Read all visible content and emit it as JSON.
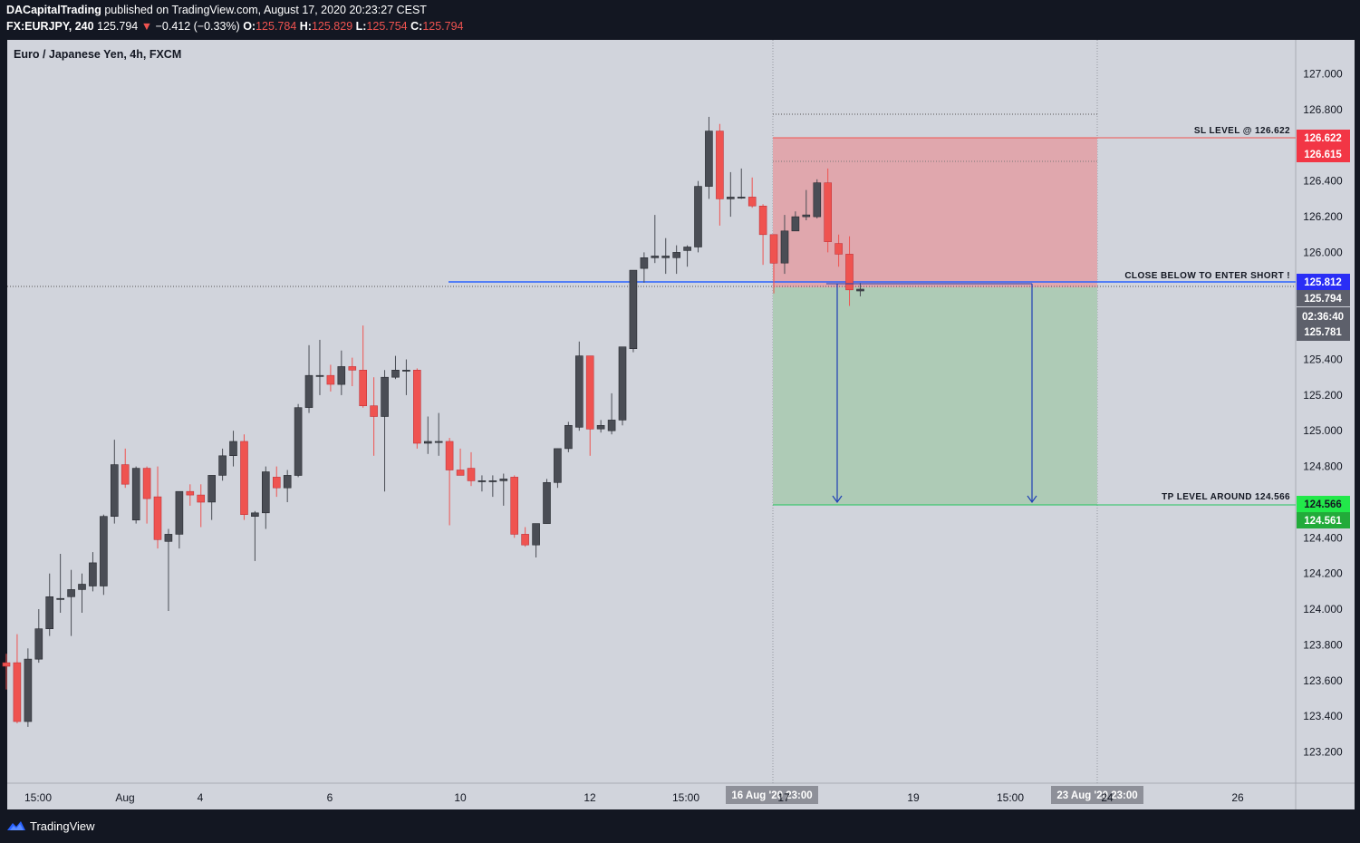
{
  "header": {
    "publisher": "DACapitalTrading",
    "published_text": "published on TradingView.com, August 17, 2020 20:23:27 CEST",
    "symbol": "FX:EURJPY, 240",
    "last": "125.794",
    "change_arrow": "▼",
    "change": "−0.412 (−0.33%)",
    "o_label": "O:",
    "o_value": "125.784",
    "h_label": "H:",
    "h_value": "125.829",
    "l_label": "L:",
    "l_value": "125.754",
    "c_label": "C:",
    "c_value": "125.794"
  },
  "symbol_label": "Euro / Japanese Yen, 4h, FXCM",
  "footer": {
    "brand": "TradingView",
    "logo_icon": "tradingview-logo-icon"
  },
  "colors": {
    "bg": "#d1d4dc",
    "up": "#4a4d55",
    "down": "#ef5350",
    "stop_zone": "#e0a7ad",
    "target_zone": "#aecbb6",
    "entry_line": "#2962ff",
    "arrow": "#1e3fb5"
  },
  "annotations": {
    "sl": "SL LEVEL @ 126.622",
    "entry": "CLOSE BELOW TO ENTER SHORT !",
    "tp": "TP LEVEL AROUND 124.566"
  },
  "price_badges": {
    "sl_top": "126.622",
    "sl_bottom": "126.615",
    "entry": "125.812",
    "last": "125.794",
    "countdown": "02:36:40",
    "last2": "125.781",
    "tp_top": "124.566",
    "tp_bottom": "124.561"
  },
  "time_axis": {
    "ticks": [
      "15:00",
      "Aug",
      "4",
      "6",
      "10",
      "12",
      "15:00",
      "19",
      "15:00",
      "26"
    ],
    "range_badges": [
      "16 Aug '20 23:00",
      "23 Aug '20 23:00"
    ],
    "overlap_ticks": [
      "17",
      "24"
    ]
  },
  "chart_data": {
    "type": "candlestick",
    "symbol": "EURJPY",
    "timeframe": "4h",
    "y_ticks": [
      127.0,
      126.8,
      126.4,
      126.2,
      126.0,
      125.4,
      125.2,
      125.0,
      124.8,
      124.4,
      124.2,
      124.0,
      123.8,
      123.6,
      123.4,
      123.2
    ],
    "ylim": [
      123.0,
      127.2
    ],
    "candles": [
      {
        "o": 123.7,
        "h": 123.75,
        "l": 123.55,
        "c": 123.68
      },
      {
        "o": 123.7,
        "h": 123.86,
        "l": 123.36,
        "c": 123.37
      },
      {
        "o": 123.37,
        "h": 123.78,
        "l": 123.34,
        "c": 123.72
      },
      {
        "o": 123.72,
        "h": 124.0,
        "l": 123.7,
        "c": 123.89
      },
      {
        "o": 123.89,
        "h": 124.2,
        "l": 123.85,
        "c": 124.07
      },
      {
        "o": 124.06,
        "h": 124.31,
        "l": 123.98,
        "c": 124.06
      },
      {
        "o": 124.07,
        "h": 124.22,
        "l": 123.85,
        "c": 124.11
      },
      {
        "o": 124.11,
        "h": 124.2,
        "l": 123.98,
        "c": 124.14
      },
      {
        "o": 124.13,
        "h": 124.32,
        "l": 124.1,
        "c": 124.26
      },
      {
        "o": 124.13,
        "h": 124.53,
        "l": 124.08,
        "c": 124.52
      },
      {
        "o": 124.52,
        "h": 124.95,
        "l": 124.48,
        "c": 124.81
      },
      {
        "o": 124.81,
        "h": 124.9,
        "l": 124.68,
        "c": 124.7
      },
      {
        "o": 124.5,
        "h": 124.8,
        "l": 124.48,
        "c": 124.79
      },
      {
        "o": 124.79,
        "h": 124.8,
        "l": 124.48,
        "c": 124.62
      },
      {
        "o": 124.63,
        "h": 124.8,
        "l": 124.34,
        "c": 124.39
      },
      {
        "o": 124.38,
        "h": 124.45,
        "l": 123.99,
        "c": 124.42
      },
      {
        "o": 124.42,
        "h": 124.65,
        "l": 124.34,
        "c": 124.66
      },
      {
        "o": 124.66,
        "h": 124.7,
        "l": 124.58,
        "c": 124.64
      },
      {
        "o": 124.64,
        "h": 124.7,
        "l": 124.46,
        "c": 124.6
      },
      {
        "o": 124.6,
        "h": 124.75,
        "l": 124.5,
        "c": 124.75
      },
      {
        "o": 124.75,
        "h": 124.9,
        "l": 124.72,
        "c": 124.86
      },
      {
        "o": 124.86,
        "h": 125.0,
        "l": 124.8,
        "c": 124.94
      },
      {
        "o": 124.94,
        "h": 124.98,
        "l": 124.5,
        "c": 124.53
      },
      {
        "o": 124.52,
        "h": 124.55,
        "l": 124.27,
        "c": 124.54
      },
      {
        "o": 124.54,
        "h": 124.8,
        "l": 124.45,
        "c": 124.77
      },
      {
        "o": 124.74,
        "h": 124.8,
        "l": 124.63,
        "c": 124.68
      },
      {
        "o": 124.68,
        "h": 124.78,
        "l": 124.6,
        "c": 124.75
      },
      {
        "o": 124.75,
        "h": 125.15,
        "l": 124.74,
        "c": 125.13
      },
      {
        "o": 125.13,
        "h": 125.48,
        "l": 125.1,
        "c": 125.31
      },
      {
        "o": 125.31,
        "h": 125.51,
        "l": 125.2,
        "c": 125.31
      },
      {
        "o": 125.31,
        "h": 125.37,
        "l": 125.22,
        "c": 125.26
      },
      {
        "o": 125.26,
        "h": 125.45,
        "l": 125.2,
        "c": 125.36
      },
      {
        "o": 125.36,
        "h": 125.41,
        "l": 125.25,
        "c": 125.34
      },
      {
        "o": 125.34,
        "h": 125.59,
        "l": 125.13,
        "c": 125.14
      },
      {
        "o": 125.14,
        "h": 125.3,
        "l": 124.86,
        "c": 125.08
      },
      {
        "o": 125.08,
        "h": 125.34,
        "l": 124.66,
        "c": 125.3
      },
      {
        "o": 125.3,
        "h": 125.42,
        "l": 125.29,
        "c": 125.34
      },
      {
        "o": 125.34,
        "h": 125.4,
        "l": 125.2,
        "c": 125.34
      },
      {
        "o": 125.34,
        "h": 125.35,
        "l": 124.9,
        "c": 124.93
      },
      {
        "o": 124.93,
        "h": 125.08,
        "l": 124.87,
        "c": 124.94
      },
      {
        "o": 124.94,
        "h": 125.1,
        "l": 124.86,
        "c": 124.94
      },
      {
        "o": 124.94,
        "h": 124.96,
        "l": 124.47,
        "c": 124.78
      },
      {
        "o": 124.78,
        "h": 124.9,
        "l": 124.75,
        "c": 124.75
      },
      {
        "o": 124.79,
        "h": 124.88,
        "l": 124.69,
        "c": 124.72
      },
      {
        "o": 124.72,
        "h": 124.75,
        "l": 124.66,
        "c": 124.72
      },
      {
        "o": 124.72,
        "h": 124.75,
        "l": 124.63,
        "c": 124.72
      },
      {
        "o": 124.72,
        "h": 124.76,
        "l": 124.58,
        "c": 124.73
      },
      {
        "o": 124.74,
        "h": 124.75,
        "l": 124.4,
        "c": 124.42
      },
      {
        "o": 124.42,
        "h": 124.46,
        "l": 124.35,
        "c": 124.36
      },
      {
        "o": 124.36,
        "h": 124.48,
        "l": 124.29,
        "c": 124.48
      },
      {
        "o": 124.48,
        "h": 124.73,
        "l": 124.48,
        "c": 124.71
      },
      {
        "o": 124.71,
        "h": 124.9,
        "l": 124.68,
        "c": 124.9
      },
      {
        "o": 124.9,
        "h": 125.05,
        "l": 124.88,
        "c": 125.03
      },
      {
        "o": 125.02,
        "h": 125.5,
        "l": 125.0,
        "c": 125.42
      },
      {
        "o": 125.42,
        "h": 125.42,
        "l": 124.86,
        "c": 125.01
      },
      {
        "o": 125.01,
        "h": 125.06,
        "l": 124.99,
        "c": 125.03
      },
      {
        "o": 125.0,
        "h": 125.21,
        "l": 124.98,
        "c": 125.06
      },
      {
        "o": 125.06,
        "h": 125.47,
        "l": 125.03,
        "c": 125.47
      },
      {
        "o": 125.46,
        "h": 125.9,
        "l": 125.44,
        "c": 125.9
      },
      {
        "o": 125.91,
        "h": 126.0,
        "l": 125.83,
        "c": 125.97
      },
      {
        "o": 125.97,
        "h": 126.21,
        "l": 125.94,
        "c": 125.98
      },
      {
        "o": 125.97,
        "h": 126.08,
        "l": 125.88,
        "c": 125.98
      },
      {
        "o": 125.97,
        "h": 126.04,
        "l": 125.88,
        "c": 126.0
      },
      {
        "o": 126.01,
        "h": 126.04,
        "l": 125.92,
        "c": 126.03
      },
      {
        "o": 126.03,
        "h": 126.4,
        "l": 126.0,
        "c": 126.37
      },
      {
        "o": 126.37,
        "h": 126.76,
        "l": 126.3,
        "c": 126.68
      },
      {
        "o": 126.68,
        "h": 126.72,
        "l": 126.15,
        "c": 126.3
      },
      {
        "o": 126.3,
        "h": 126.45,
        "l": 126.2,
        "c": 126.31
      },
      {
        "o": 126.31,
        "h": 126.47,
        "l": 126.3,
        "c": 126.31
      },
      {
        "o": 126.31,
        "h": 126.42,
        "l": 126.25,
        "c": 126.26
      },
      {
        "o": 126.26,
        "h": 126.27,
        "l": 125.93,
        "c": 126.1
      },
      {
        "o": 126.1,
        "h": 126.1,
        "l": 125.77,
        "c": 125.94
      },
      {
        "o": 125.94,
        "h": 126.21,
        "l": 125.88,
        "c": 126.12
      },
      {
        "o": 126.12,
        "h": 126.23,
        "l": 126.12,
        "c": 126.2
      },
      {
        "o": 126.2,
        "h": 126.35,
        "l": 126.18,
        "c": 126.21
      },
      {
        "o": 126.2,
        "h": 126.41,
        "l": 126.19,
        "c": 126.39
      },
      {
        "o": 126.39,
        "h": 126.47,
        "l": 126.0,
        "c": 126.06
      },
      {
        "o": 126.05,
        "h": 126.1,
        "l": 125.92,
        "c": 125.99
      },
      {
        "o": 125.99,
        "h": 126.09,
        "l": 125.7,
        "c": 125.79
      },
      {
        "o": 125.784,
        "h": 125.829,
        "l": 125.754,
        "c": 125.794
      }
    ],
    "levels": {
      "stop_loss": 126.622,
      "entry": 125.812,
      "take_profit": 124.566,
      "last_price": 125.794
    }
  }
}
